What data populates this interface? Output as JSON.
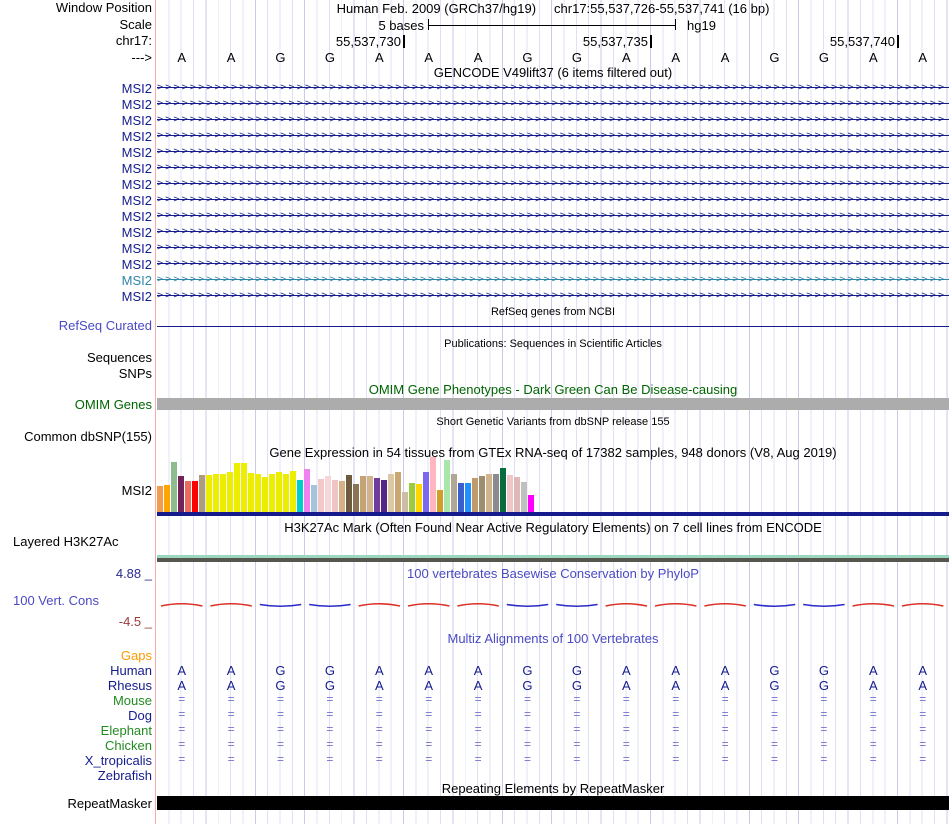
{
  "header": {
    "window_position_label": "Window Position",
    "assembly_title": "Human Feb. 2009 (GRCh37/hg19)",
    "position_title": "chr17:55,537,726-55,537,741 (16 bp)",
    "scale_label": "Scale",
    "scale_value": "5 bases",
    "assembly_tag": "hg19",
    "chrom_label": "chr17:",
    "ruler_ticks": [
      "55,537,730",
      "55,537,735",
      "55,537,740"
    ],
    "strand_label": "--->"
  },
  "sequence": {
    "bases": [
      "A",
      "A",
      "G",
      "G",
      "A",
      "A",
      "A",
      "G",
      "G",
      "A",
      "A",
      "A",
      "G",
      "G",
      "A",
      "A"
    ]
  },
  "gencode": {
    "title": "GENCODE V49lift37 (6 items filtered out)",
    "gene_label": "MSI2",
    "row_colors": [
      "#151B8D",
      "#151B8D",
      "#151B8D",
      "#151B8D",
      "#151B8D",
      "#151B8D",
      "#151B8D",
      "#151B8D",
      "#151B8D",
      "#151B8D",
      "#151B8D",
      "#151B8D",
      "#2E86AB",
      "#151B8D"
    ]
  },
  "tracks": {
    "refseq": {
      "center_title": "RefSeq genes from NCBI",
      "label": "RefSeq Curated"
    },
    "publications": {
      "center_title": "Publications: Sequences in Scientific Articles"
    },
    "sequences_label": "Sequences",
    "snps_label": "SNPs",
    "omim": {
      "center_title": "OMIM Gene Phenotypes - Dark Green Can Be Disease-causing",
      "label": "OMIM Genes"
    },
    "dbsnp": {
      "center_title": "Short Genetic Variants from dbSNP release 155",
      "label": "Common dbSNP(155)"
    },
    "gtex": {
      "center_title": "Gene Expression in 54 tissues from GTEx RNA-seq of 17382 samples, 948 donors (V8, Aug 2019)",
      "label": "MSI2"
    },
    "h3k27ac": {
      "center_title": "H3K27Ac Mark (Often Found Near Active Regulatory Elements) on 7 cell lines from ENCODE",
      "label": "Layered H3K27Ac"
    },
    "conservation": {
      "center_title": "100 vertebrates Basewise Conservation by PhyloP",
      "label": "100 Vert. Cons",
      "scale_max": "4.88 _",
      "scale_min": "-4.5 _",
      "segment_colors": [
        "red",
        "red",
        "blue",
        "blue",
        "red",
        "red",
        "red",
        "blue",
        "blue",
        "red",
        "red",
        "red",
        "blue",
        "blue",
        "red",
        "red"
      ]
    },
    "multiz": {
      "center_title": "Multiz Alignments of 100 Vertebrates",
      "rows": [
        {
          "label": "Gaps",
          "label_color": "#FF9900",
          "content": "empty"
        },
        {
          "label": "Human",
          "label_color": "#151B8D",
          "content": "bases"
        },
        {
          "label": "Rhesus",
          "label_color": "#151B8D",
          "content": "bases"
        },
        {
          "label": "Mouse",
          "label_color": "#228B22",
          "content": "equals"
        },
        {
          "label": "Dog",
          "label_color": "#151B8D",
          "content": "equals"
        },
        {
          "label": "Elephant",
          "label_color": "#228B22",
          "content": "equals"
        },
        {
          "label": "Chicken",
          "label_color": "#228B22",
          "content": "equals"
        },
        {
          "label": "X_tropicalis",
          "label_color": "#151B8D",
          "content": "equals"
        },
        {
          "label": "Zebrafish",
          "label_color": "#151B8D",
          "content": "empty"
        }
      ]
    },
    "repeatmasker": {
      "center_title": "Repeating Elements by RepeatMasker",
      "label": "RepeatMasker"
    }
  },
  "chart_data": {
    "type": "bar",
    "title": "Gene Expression in 54 tissues from GTEx RNA-seq of 17382 samples, 948 donors (V8, Aug 2019)",
    "gene": "MSI2",
    "xlabel": "",
    "ylabel": "",
    "note": "54 GTEx tissue expression bars, tissues unlabeled in image; values are bar heights in px estimated from screenshot",
    "values": [
      26,
      27,
      50,
      36,
      31,
      31,
      37,
      37,
      38,
      38,
      40,
      49,
      49,
      39,
      38,
      35,
      38,
      40,
      38,
      41,
      32,
      43,
      27,
      33,
      36,
      32,
      31,
      37,
      28,
      36,
      36,
      34,
      32,
      38,
      40,
      20,
      29,
      28,
      40,
      55,
      22,
      52,
      38,
      29,
      29,
      34,
      36,
      38,
      38,
      44,
      37,
      35,
      30,
      17
    ],
    "bar_colors": [
      "#F09C4C",
      "#FFA500",
      "#8FBC8F",
      "#73235B",
      "#EE6A5A",
      "#FF0000",
      "#AF9C7C",
      "#EDED00",
      "#EDED00",
      "#EDED00",
      "#EDED00",
      "#EDED00",
      "#EDED00",
      "#EDED00",
      "#EDED00",
      "#EDED00",
      "#EDED00",
      "#EDED00",
      "#EDED00",
      "#EDED00",
      "#00CDCD",
      "#EE82EE",
      "#A6C3DC",
      "#F2C8C8",
      "#F6D6D6",
      "#F0C4C4",
      "#D5B185",
      "#6E5C41",
      "#8B7355",
      "#C4A374",
      "#D2B48C",
      "#6F3C9E",
      "#552586",
      "#DCC8A4",
      "#C8A870",
      "#CCBCA8",
      "#9CCB3B",
      "#FFD700",
      "#7B68EE",
      "#FFB6C1",
      "#D2A02A",
      "#AAE6AA",
      "#B0A894",
      "#3A5FCD",
      "#1E90FF",
      "#C19A6B",
      "#9C8E6E",
      "#D2B48C",
      "#8C8C8C",
      "#0A6B3C",
      "#EEC8C8",
      "#E0B8B8",
      "#C0C0C0",
      "#FF00FF"
    ]
  },
  "colors": {
    "navy": "#151B8D",
    "gene_alt_teal": "#2E86AB",
    "track_title_purple": "#4A4AC4",
    "dark_green": "#006400",
    "gaps_orange": "#FF9900",
    "species_green": "#228B22",
    "align_equals": "#7272CC",
    "cons_red": "#DC3025",
    "cons_blue": "#2B2BC8",
    "scale_max_navy": "#2B2B8F",
    "scale_min_red": "#9E3B3B",
    "omim_gray": "#ACACAC",
    "h3k_teal": "#9BD6BE",
    "h3k_gray": "#56564E",
    "grid_minor": "#E0E0F5",
    "grid_major": "#C9C9E9",
    "edge_pink": "#F4ACAC",
    "repeat_black": "#000000"
  }
}
